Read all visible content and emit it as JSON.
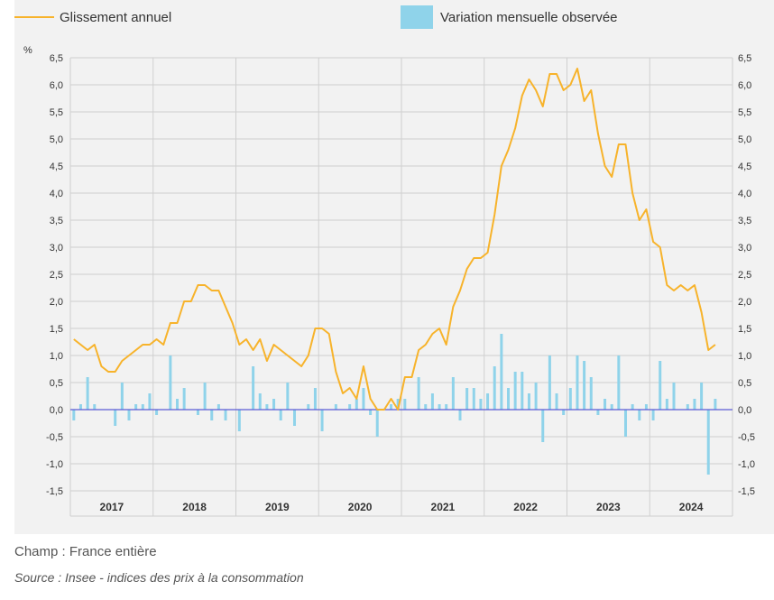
{
  "legend": {
    "line_label": "Glissement annuel",
    "bar_label": "Variation mensuelle observée"
  },
  "footnotes": {
    "champ": "Champ : France entière",
    "source": "Source : Insee - indices des prix à la consommation"
  },
  "colors": {
    "line": "#f7b32b",
    "bars": "#8fd3ea",
    "grid": "#cfcfcf",
    "zero": "#5b5bd6",
    "panel": "#f2f2f2"
  },
  "chart_data": {
    "type": "line",
    "unit_label": "%",
    "x_start": "2017-01",
    "year_labels": [
      "2017",
      "2018",
      "2019",
      "2020",
      "2021",
      "2022",
      "2023",
      "2024"
    ],
    "y_ticks": [
      "6,5",
      "6,0",
      "5,5",
      "5,0",
      "4,5",
      "4,0",
      "3,5",
      "3,0",
      "2,5",
      "2,0",
      "1,5",
      "1,0",
      "0,5",
      "0,0",
      "-0,5",
      "-1,0",
      "-1,5"
    ],
    "ylim": [
      -1.5,
      6.5
    ],
    "grid": true,
    "legend_position": "top",
    "series": [
      {
        "name": "Glissement annuel",
        "kind": "line",
        "values": [
          1.3,
          1.2,
          1.1,
          1.2,
          0.8,
          0.7,
          0.7,
          0.9,
          1.0,
          1.1,
          1.2,
          1.2,
          1.3,
          1.2,
          1.6,
          1.6,
          2.0,
          2.0,
          2.3,
          2.3,
          2.2,
          2.2,
          1.9,
          1.6,
          1.2,
          1.3,
          1.1,
          1.3,
          0.9,
          1.2,
          1.1,
          1.0,
          0.9,
          0.8,
          1.0,
          1.5,
          1.5,
          1.4,
          0.7,
          0.3,
          0.4,
          0.2,
          0.8,
          0.2,
          0.0,
          0.0,
          0.2,
          0.0,
          0.6,
          0.6,
          1.1,
          1.2,
          1.4,
          1.5,
          1.2,
          1.9,
          2.2,
          2.6,
          2.8,
          2.8,
          2.9,
          3.6,
          4.5,
          4.8,
          5.2,
          5.8,
          6.1,
          5.9,
          5.6,
          6.2,
          6.2,
          5.9,
          6.0,
          6.3,
          5.7,
          5.9,
          5.1,
          4.5,
          4.3,
          4.9,
          4.9,
          4.0,
          3.5,
          3.7,
          3.1,
          3.0,
          2.3,
          2.2,
          2.3,
          2.2,
          2.3,
          1.8,
          1.1,
          1.2
        ]
      },
      {
        "name": "Variation mensuelle observée",
        "kind": "bar",
        "values": [
          -0.2,
          0.1,
          0.6,
          0.1,
          0.0,
          0.0,
          -0.3,
          0.5,
          -0.2,
          0.1,
          0.1,
          0.3,
          -0.1,
          0.0,
          1.0,
          0.2,
          0.4,
          0.0,
          -0.1,
          0.5,
          -0.2,
          0.1,
          -0.2,
          0.0,
          -0.4,
          0.0,
          0.8,
          0.3,
          0.1,
          0.2,
          -0.2,
          0.5,
          -0.3,
          0.0,
          0.1,
          0.4,
          -0.4,
          0.0,
          0.1,
          0.0,
          0.1,
          0.2,
          0.4,
          -0.1,
          -0.5,
          0.0,
          0.1,
          0.2,
          0.2,
          0.0,
          0.6,
          0.1,
          0.3,
          0.1,
          0.1,
          0.6,
          -0.2,
          0.4,
          0.4,
          0.2,
          0.3,
          0.8,
          1.4,
          0.4,
          0.7,
          0.7,
          0.3,
          0.5,
          -0.6,
          1.0,
          0.3,
          -0.1,
          0.4,
          1.0,
          0.9,
          0.6,
          -0.1,
          0.2,
          0.1,
          1.0,
          -0.5,
          0.1,
          -0.2,
          0.1,
          -0.2,
          0.9,
          0.2,
          0.5,
          0.0,
          0.1,
          0.2,
          0.5,
          -1.2,
          0.2
        ]
      }
    ]
  }
}
